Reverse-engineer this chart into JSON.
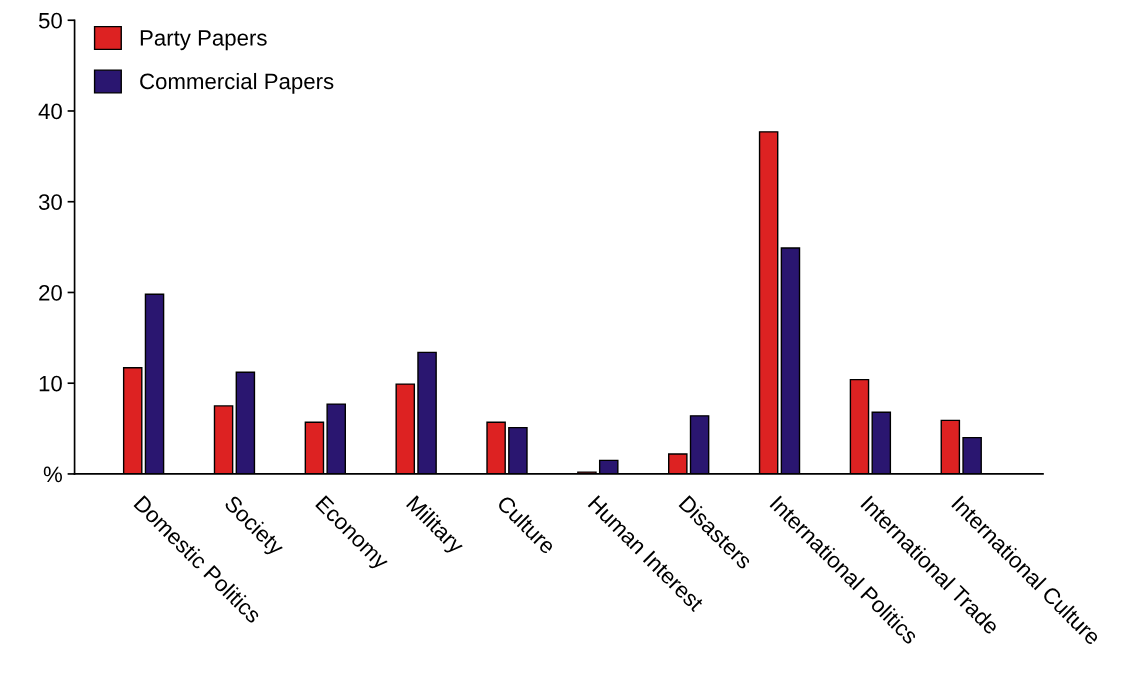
{
  "chart_data": {
    "type": "bar",
    "categories": [
      "Domestic Politics",
      "Society",
      "Economy",
      "Military",
      "Culture",
      "Human Interest",
      "Disasters",
      "International Politics",
      "International Trade",
      "International Culture"
    ],
    "series": [
      {
        "name": "Party Papers",
        "color": "#dd2222",
        "values": [
          11.7,
          7.5,
          5.7,
          9.9,
          5.7,
          0.2,
          2.2,
          37.7,
          10.4,
          5.9
        ]
      },
      {
        "name": "Commercial Papers",
        "color": "#2a1670",
        "values": [
          19.8,
          11.2,
          7.7,
          13.4,
          5.1,
          1.5,
          6.4,
          24.9,
          6.8,
          4.0
        ]
      }
    ],
    "ylim": [
      0,
      50
    ],
    "yticks": [
      {
        "value": 0,
        "label": "%"
      },
      10,
      20,
      30,
      40,
      50
    ],
    "grid": false,
    "legend": "top left"
  }
}
